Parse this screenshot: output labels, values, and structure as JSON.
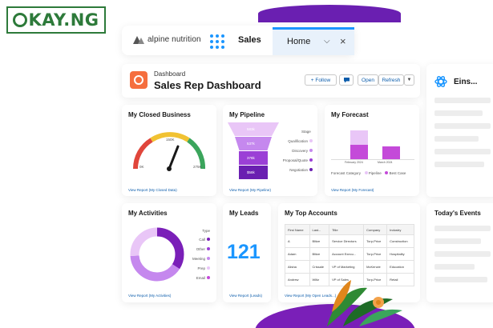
{
  "watermark": {
    "text_after_o": "KAY.NG"
  },
  "topbar": {
    "logo_text": "alpine nutrition",
    "app_name": "Sales",
    "tab_label": "Home",
    "tab_menu_icon": "chevron-down-icon",
    "tab_close_icon": "close-icon"
  },
  "dashboard": {
    "kicker": "Dashboard",
    "title": "Sales Rep Dashboard",
    "follow_label": "+ Follow",
    "open_label": "Open",
    "refresh_label": "Refresh"
  },
  "einstein": {
    "title": "Eins..."
  },
  "closed_business": {
    "title": "My Closed Business",
    "gauge_min": "0K",
    "gauge_mid": "150K",
    "gauge_max": "275K",
    "link": "View Report (My Closed Data)",
    "needle_fraction": 0.62
  },
  "pipeline": {
    "title": "My Pipeline",
    "stage_label": "Stage",
    "stages": [
      "Qualification",
      "Discovery",
      "Proposal/Quote",
      "Negotiation"
    ],
    "values": [
      "583k",
      "537k",
      "378k",
      "$58k"
    ],
    "link": "View Report (My Pipeline)"
  },
  "forecast": {
    "title": "My Forecast",
    "x_labels": [
      "February 2024",
      "March 2024"
    ],
    "legend_title": "Forecast Category",
    "legend": [
      "Pipeline",
      "Best Case"
    ],
    "link": "View Report (My Forecast)"
  },
  "activities": {
    "title": "My Activities",
    "type_label": "Type",
    "types": [
      "Call",
      "Other",
      "Meeting",
      "Prep",
      "Email"
    ],
    "link": "View Report (My Activities)"
  },
  "leads": {
    "title": "My Leads",
    "value": "121",
    "link": "View Report (Leads)"
  },
  "top_accounts": {
    "title": "My Top Accounts",
    "columns": [
      "First Name",
      "Last...",
      "Title",
      "Company",
      "Industry"
    ],
    "rows": [
      [
        "A",
        "Blitze",
        "Service Directors",
        "Torp-Price",
        "Construction"
      ],
      [
        "Adam",
        "Blitze",
        "Account Execu...",
        "Torp-Price",
        "Hospitality"
      ],
      [
        "Alisha",
        "Crissale",
        "VP of Marketing",
        "McKenzie",
        "Education"
      ],
      [
        "Andrew",
        "Wiltz",
        "VP of Sales",
        "Torp-Price",
        "Retail"
      ]
    ],
    "link": "View Report (My Open Leads...)"
  },
  "events": {
    "title": "Today's Events"
  },
  "colors": {
    "brand_blue": "#1b96ff",
    "link_blue": "#0b5cab",
    "purple_dark": "#7a1fb8",
    "purple_light": "#c588ee",
    "gauge_red": "#e0463b",
    "gauge_yellow": "#f1c232",
    "gauge_green": "#3ba55c"
  }
}
